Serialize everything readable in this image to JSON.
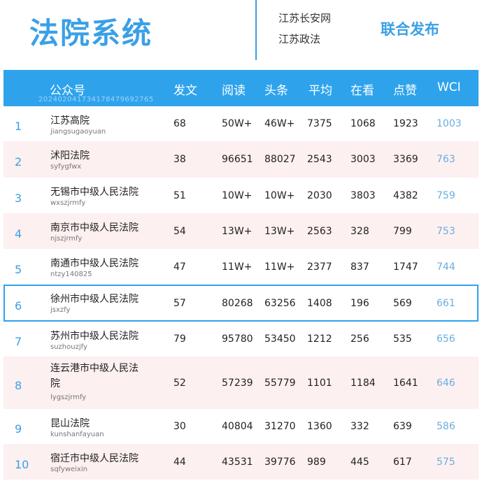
{
  "header": {
    "title": "法院系统",
    "source_1": "江苏长安网",
    "source_2": "江苏政法",
    "publish": "联合发布"
  },
  "columns": {
    "account": "公众号",
    "account_sub": "20240204173417847969276​5",
    "posts": "发文",
    "reads": "阅读",
    "headline": "头条",
    "average": "平均",
    "watching": "在看",
    "likes": "点赞",
    "wci": "WCI"
  },
  "rows": [
    {
      "rank": "1",
      "name": "江苏高院",
      "id": "jiangsugaoyuan",
      "posts": "68",
      "reads": "50W+",
      "headline": "46W+",
      "average": "7375",
      "watching": "1068",
      "likes": "1923",
      "wci": "1003"
    },
    {
      "rank": "2",
      "name": "沭阳法院",
      "id": "syfygfwx",
      "posts": "38",
      "reads": "96651",
      "headline": "88027",
      "average": "2543",
      "watching": "3003",
      "likes": "3369",
      "wci": "763"
    },
    {
      "rank": "3",
      "name": "无锡市中级人民法院",
      "id": "wxszjrmfy",
      "posts": "51",
      "reads": "10W+",
      "headline": "10W+",
      "average": "2030",
      "watching": "3803",
      "likes": "4382",
      "wci": "759"
    },
    {
      "rank": "4",
      "name": "南京市中级人民法院",
      "id": "njszjrmfy",
      "posts": "54",
      "reads": "13W+",
      "headline": "13W+",
      "average": "2563",
      "watching": "328",
      "likes": "799",
      "wci": "753"
    },
    {
      "rank": "5",
      "name": "南通市中级人民法院",
      "id": "ntzy140825",
      "posts": "47",
      "reads": "11W+",
      "headline": "11W+",
      "average": "2377",
      "watching": "837",
      "likes": "1747",
      "wci": "744"
    },
    {
      "rank": "6",
      "name": "徐州市中级人民法院",
      "id": "jsxzfy",
      "posts": "57",
      "reads": "80268",
      "headline": "63256",
      "average": "1408",
      "watching": "196",
      "likes": "569",
      "wci": "661"
    },
    {
      "rank": "7",
      "name": "苏州市中级人民法院",
      "id": "suzhouzjfy",
      "posts": "79",
      "reads": "95780",
      "headline": "53450",
      "average": "1212",
      "watching": "256",
      "likes": "535",
      "wci": "656"
    },
    {
      "rank": "8",
      "name": "连云港市中级人民法院",
      "id": "lygszjrmfy",
      "posts": "52",
      "reads": "57239",
      "headline": "55779",
      "average": "1101",
      "watching": "1184",
      "likes": "1641",
      "wci": "646"
    },
    {
      "rank": "9",
      "name": "昆山法院",
      "id": "kunshanfayuan",
      "posts": "30",
      "reads": "40804",
      "headline": "31270",
      "average": "1360",
      "watching": "332",
      "likes": "639",
      "wci": "586"
    },
    {
      "rank": "10",
      "name": "宿迁市中级人民法院",
      "id": "sqfyweixin",
      "posts": "44",
      "reads": "43531",
      "headline": "39776",
      "average": "989",
      "watching": "445",
      "likes": "617",
      "wci": "575"
    }
  ],
  "colors": {
    "accent": "#3aa0e6",
    "header_bg": "#2ea3ec",
    "alt_row": "#fdf0f0",
    "wci_text": "#6aaee0"
  }
}
